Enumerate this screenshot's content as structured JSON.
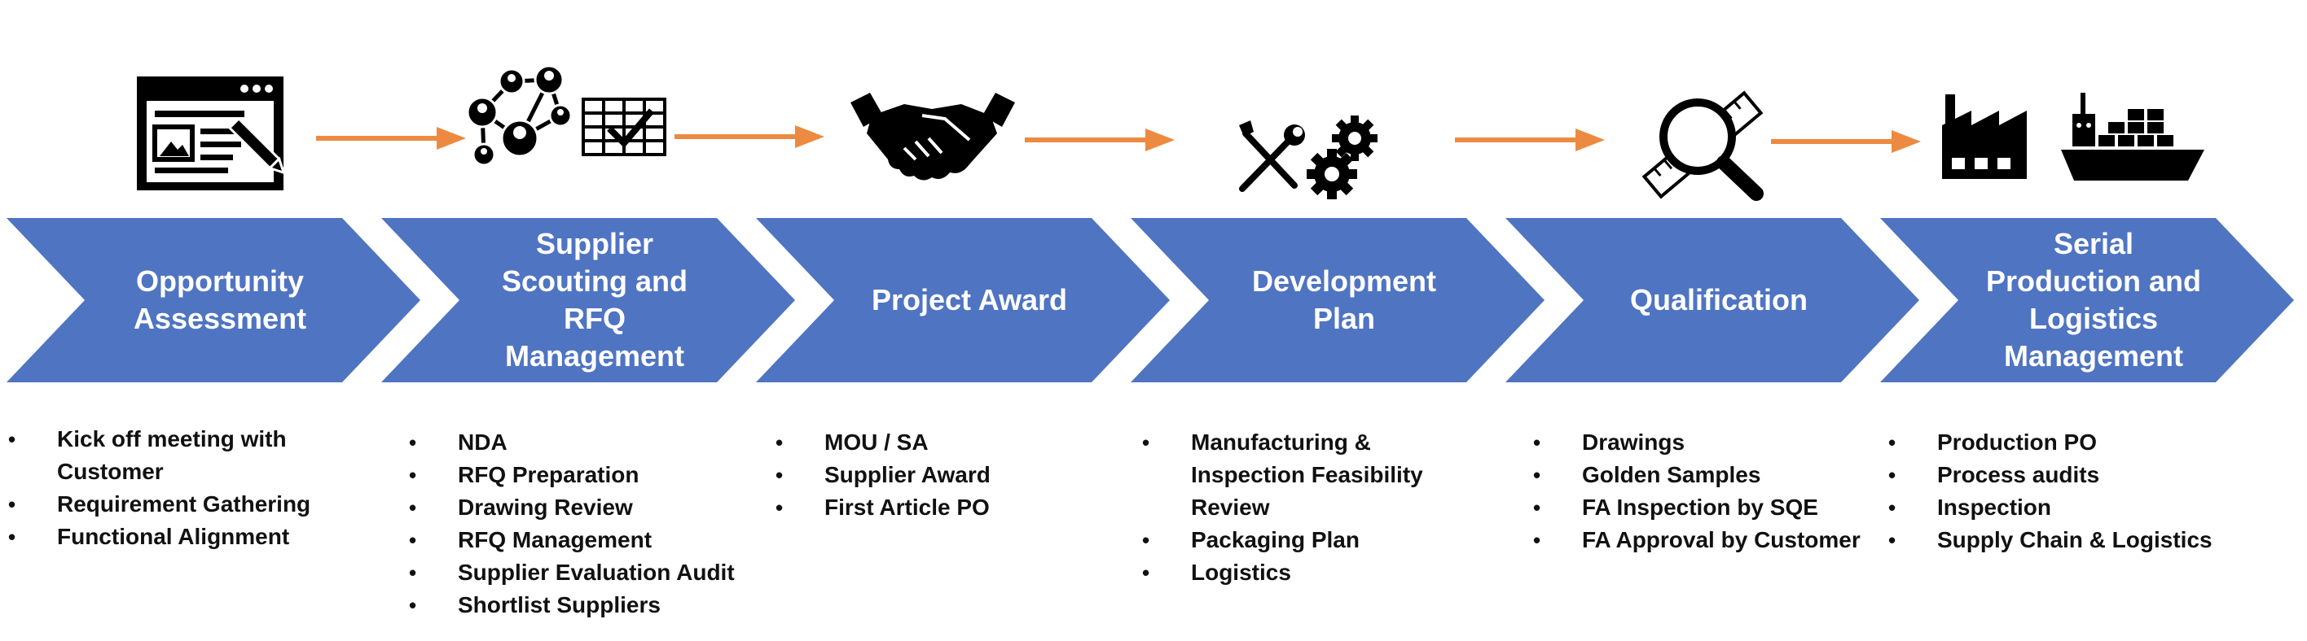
{
  "colors": {
    "chevron": "#4f74c2",
    "arrow": "#ed8a41",
    "icon": "#000000",
    "text": "#111111"
  },
  "stages": [
    {
      "title": "Opportunity\nAssessment",
      "icon": "web-page-editing-icon",
      "bullets": [
        "Kick off meeting with\nCustomer",
        "Requirement Gathering",
        "Functional Alignment"
      ]
    },
    {
      "title": "Supplier\nScouting and\nRFQ\nManagement",
      "icon": "network-and-table-icon",
      "bullets": [
        "NDA",
        "RFQ Preparation",
        "Drawing Review",
        "RFQ Management",
        "Supplier Evaluation Audit",
        "Shortlist Suppliers"
      ]
    },
    {
      "title": "Project Award",
      "icon": "handshake-icon",
      "bullets": [
        "MOU / SA",
        "Supplier Award",
        "First Article PO"
      ]
    },
    {
      "title": "Development\nPlan",
      "icon": "tools-and-gears-icon",
      "bullets": [
        "Manufacturing &\nInspection Feasibility\nReview",
        "Packaging Plan",
        "Logistics"
      ]
    },
    {
      "title": "Qualification",
      "icon": "magnifier-ruler-icon",
      "bullets": [
        "Drawings",
        "Golden Samples",
        "FA Inspection by SQE",
        "FA Approval by Customer"
      ]
    },
    {
      "title": "Serial\nProduction and\nLogistics\nManagement",
      "icon": "factory-and-ship-icon",
      "bullets": [
        "Production PO",
        "Process audits",
        "Inspection",
        "Supply Chain & Logistics"
      ]
    }
  ]
}
